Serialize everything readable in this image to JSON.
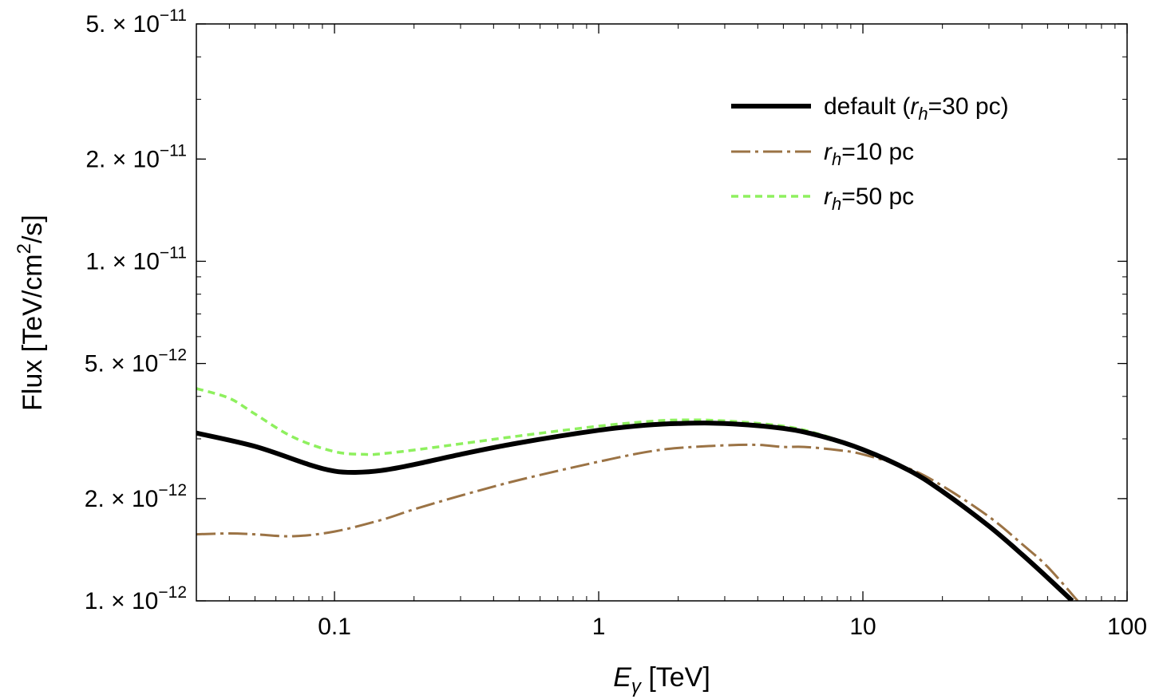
{
  "chart_data": {
    "type": "line",
    "title": "",
    "xscale": "log",
    "yscale": "log",
    "xlabel": {
      "main": "E",
      "sub": "γ",
      "unit": " [TeV]"
    },
    "ylabel": {
      "pre": "Flux [TeV/cm",
      "sup": "2",
      "post": "/s]"
    },
    "xlim": [
      0.03,
      100
    ],
    "ylim": [
      1e-12,
      5e-11
    ],
    "xticks": [
      {
        "value": 0.1,
        "label": "0.1"
      },
      {
        "value": 1,
        "label": "1"
      },
      {
        "value": 10,
        "label": "10"
      },
      {
        "value": 100,
        "label": "100"
      }
    ],
    "yticks": [
      {
        "value": 1e-12,
        "mant": "1.",
        "exp": "−12"
      },
      {
        "value": 2e-12,
        "mant": "2.",
        "exp": "−12"
      },
      {
        "value": 5e-12,
        "mant": "5.",
        "exp": "−12"
      },
      {
        "value": 1e-11,
        "mant": "1.",
        "exp": "−11"
      },
      {
        "value": 2e-11,
        "mant": "2.",
        "exp": "−11"
      },
      {
        "value": 5e-11,
        "mant": "5.",
        "exp": "−11"
      }
    ],
    "tick_base_text": " × 10",
    "legend_position": "top-right",
    "series": [
      {
        "id": "default",
        "legend": {
          "pre": "default (",
          "var": "r",
          "sub": "h",
          "post": "=30 pc)"
        },
        "color": "#000000",
        "style": "solid",
        "x": [
          0.03,
          0.05,
          0.08,
          0.1,
          0.12,
          0.15,
          0.2,
          0.3,
          0.5,
          1,
          1.5,
          2,
          3,
          5,
          7,
          10,
          15,
          20,
          30,
          40,
          50,
          62
        ],
        "y": [
          3.12e-12,
          2.85e-12,
          2.52e-12,
          2.41e-12,
          2.39e-12,
          2.42e-12,
          2.52e-12,
          2.7e-12,
          2.92e-12,
          3.18e-12,
          3.29e-12,
          3.33e-12,
          3.33e-12,
          3.22e-12,
          3.05e-12,
          2.79e-12,
          2.42e-12,
          2.1e-12,
          1.66e-12,
          1.37e-12,
          1.17e-12,
          1e-12
        ]
      },
      {
        "id": "rh10",
        "legend": {
          "pre": "",
          "var": "r",
          "sub": "h",
          "post": "=10 pc"
        },
        "color": "#9b7345",
        "style": "dashdot",
        "x": [
          0.03,
          0.04,
          0.05,
          0.07,
          0.1,
          0.15,
          0.2,
          0.3,
          0.5,
          1,
          1.5,
          2,
          3,
          4,
          5,
          6,
          8,
          10,
          15,
          20,
          30,
          40,
          50,
          65
        ],
        "y": [
          1.57e-12,
          1.58e-12,
          1.57e-12,
          1.55e-12,
          1.6e-12,
          1.73e-12,
          1.86e-12,
          2.04e-12,
          2.27e-12,
          2.57e-12,
          2.74e-12,
          2.82e-12,
          2.87e-12,
          2.88e-12,
          2.84e-12,
          2.84e-12,
          2.78e-12,
          2.7e-12,
          2.45e-12,
          2.18e-12,
          1.77e-12,
          1.47e-12,
          1.26e-12,
          1e-12
        ]
      },
      {
        "id": "rh50",
        "legend": {
          "pre": "",
          "var": "r",
          "sub": "h",
          "post": "=50 pc"
        },
        "color": "#8ef05e",
        "style": "dashed",
        "x": [
          0.03,
          0.04,
          0.05,
          0.07,
          0.1,
          0.13,
          0.15,
          0.2,
          0.3,
          0.5,
          1,
          1.5,
          2,
          3,
          5,
          7,
          10
        ],
        "y": [
          4.22e-12,
          3.95e-12,
          3.55e-12,
          3.03e-12,
          2.75e-12,
          2.7e-12,
          2.71e-12,
          2.78e-12,
          2.9e-12,
          3.06e-12,
          3.27e-12,
          3.37e-12,
          3.41e-12,
          3.39e-12,
          3.27e-12,
          3.08e-12,
          2.8e-12
        ]
      }
    ]
  }
}
